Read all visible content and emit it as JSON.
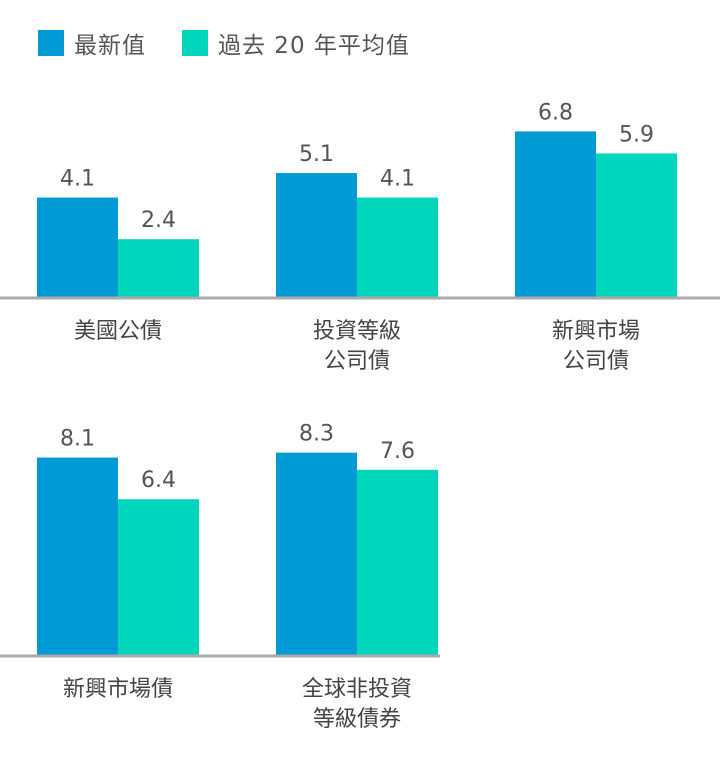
{
  "legend": [
    {
      "label": "最新值",
      "color": "#009bd4"
    },
    {
      "label": "過去 20 年平均值",
      "color": "#00d6bc"
    }
  ],
  "chart_data": {
    "type": "bar",
    "grid": false,
    "legend_position": "top-left",
    "series": [
      {
        "name": "最新值",
        "color": "#009bd4"
      },
      {
        "name": "過去 20 年平均值",
        "color": "#00d6bc"
      }
    ],
    "panels": [
      {
        "categories": [
          {
            "label_lines": [
              "美國公債"
            ],
            "values": [
              4.1,
              2.4
            ]
          },
          {
            "label_lines": [
              "投資等級",
              "公司債"
            ],
            "values": [
              5.1,
              4.1
            ]
          },
          {
            "label_lines": [
              "新興市場",
              "公司債"
            ],
            "values": [
              6.8,
              5.9
            ]
          }
        ]
      },
      {
        "categories": [
          {
            "label_lines": [
              "新興市場債"
            ],
            "values": [
              8.1,
              6.4
            ]
          },
          {
            "label_lines": [
              "全球非投資",
              "等級債券"
            ],
            "values": [
              8.3,
              7.6
            ]
          }
        ]
      }
    ]
  }
}
